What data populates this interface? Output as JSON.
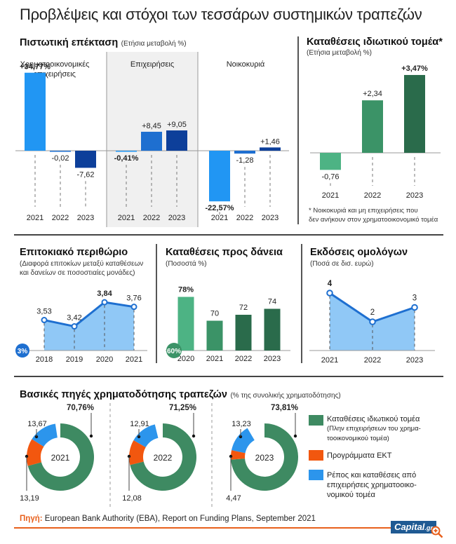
{
  "title": "Προβλέψεις και στόχοι των τεσσάρων συστημικών τραπεζών",
  "credit_expansion": {
    "title": "Πιστωτική επέκταση",
    "subtitle": "(Ετήσια μεταβολή %)",
    "groups": [
      {
        "name": "Χρηματοοικονομικές επιχειρήσεις",
        "name_line1": "Χρηματοοικονομικές",
        "name_line2": "επιχειρήσεις"
      },
      {
        "name": "Επιχειρήσεις"
      },
      {
        "name": "Νοικοκυριά"
      }
    ]
  },
  "private_deposits": {
    "title": "Καταθέσεις ιδιωτικού τομέα*",
    "subtitle": "(Ετήσια μεταβολή %)",
    "footnote_line1": "* Νοικοκυριά και μη επιχειρήσεις που",
    "footnote_line2": "δεν ανήκουν στον χρηματοοικονομικό τομέα"
  },
  "interest_margin": {
    "title": "Επιτοκιακό περιθώριο",
    "subtitle_line1": "(Διαφορά επιτοκίων μεταξύ καταθέσεων",
    "subtitle_line2": "και δανείων σε ποσοστιαίες μονάδες)",
    "base_badge": "3%"
  },
  "deposits_to_loans": {
    "title": "Καταθέσεις προς δάνεια",
    "subtitle": "(Ποσοστά %)",
    "base_badge": "60%"
  },
  "bond_issues": {
    "title": "Εκδόσεις ομολόγων",
    "subtitle": "(Ποσά σε δισ. ευρώ)"
  },
  "funding_sources": {
    "title": "Βασικές πηγές χρηματοδότησης τραπεζών",
    "subtitle": "(% της συνολικής χρηματοδότησης)",
    "legend": [
      {
        "line1": "Καταθέσεις ιδιωτικού τομέα",
        "line2": "(Πλην επιχειρήσεων του χρημα-",
        "line3": "τοοικονομικού τομέα)",
        "color": "#3e8a62"
      },
      {
        "line1": "Προγράμματα ΕΚΤ",
        "color": "#f2570f"
      },
      {
        "line1": "Ρέπος και καταθέσεις από",
        "line2": "επιχειρήσεις χρηματοοικο-",
        "line3": "νομικού τομέα",
        "color": "#2c95ec"
      }
    ]
  },
  "source": {
    "label": "Πηγή:",
    "text": "European Bank Authority (EBA), Report on Funding Plans, September 2021"
  },
  "logo": {
    "main": "Capital",
    "suffix": ".gr"
  },
  "chart_data": [
    {
      "type": "bar",
      "title": "Πιστωτική επέκταση (Ετήσια μεταβολή %)",
      "categories": [
        "2021",
        "2022",
        "2023"
      ],
      "series": [
        {
          "name": "Χρηματοοικονομικές επιχειρήσεις",
          "values": [
            34.77,
            -0.02,
            -7.62
          ],
          "labels": [
            "+34,77%",
            "-0,02",
            "-7,62"
          ]
        },
        {
          "name": "Επιχειρήσεις",
          "values": [
            -0.41,
            8.45,
            9.05
          ],
          "labels": [
            "-0,41%",
            "+8,45",
            "+9,05"
          ]
        },
        {
          "name": "Νοικοκυριά",
          "values": [
            -22.57,
            -1.28,
            1.46
          ],
          "labels": [
            "-22,57%",
            "-1,28",
            "+1,46"
          ]
        }
      ],
      "colors": [
        "#2196f3",
        "#1e6fd0",
        "#0d3f9a"
      ]
    },
    {
      "type": "bar",
      "title": "Καταθέσεις ιδιωτικού τομέα* (Ετήσια μεταβολή %)",
      "categories": [
        "2021",
        "2022",
        "2023"
      ],
      "values": [
        -0.76,
        2.34,
        3.47
      ],
      "labels": [
        "-0,76",
        "+2,34",
        "+3,47%"
      ],
      "colors": [
        "#4db384",
        "#3b9367",
        "#2a6b4b"
      ]
    },
    {
      "type": "area",
      "title": "Επιτοκιακό περιθώριο",
      "categories": [
        "2018",
        "2019",
        "2020",
        "2021"
      ],
      "values": [
        3.53,
        3.42,
        3.84,
        3.76
      ],
      "labels": [
        "3,53",
        "3,42",
        "3,84",
        "3,76"
      ],
      "ylim": [
        3,
        4
      ],
      "baseline_label": "3%"
    },
    {
      "type": "bar",
      "title": "Καταθέσεις προς δάνεια (Ποσοστά %)",
      "categories": [
        "2020",
        "2021",
        "2022",
        "2023"
      ],
      "values": [
        78,
        70,
        72,
        74
      ],
      "labels": [
        "78%",
        "70",
        "72",
        "74"
      ],
      "ylim": [
        60,
        80
      ],
      "baseline_label": "60%",
      "colors": [
        "#4db384",
        "#3b9367",
        "#2a6b4b",
        "#2a6b4b"
      ]
    },
    {
      "type": "area",
      "title": "Εκδόσεις ομολόγων (Ποσά σε δισ. ευρώ)",
      "categories": [
        "2021",
        "2022",
        "2023"
      ],
      "values": [
        4,
        2,
        3
      ],
      "labels": [
        "4",
        "2",
        "3"
      ],
      "ylim": [
        0,
        5
      ]
    },
    {
      "type": "pie",
      "title": "Βασικές πηγές χρηματοδότησης τραπεζών (% της συνολικής χρηματοδότησης)",
      "donuts": [
        {
          "year": "2021",
          "values": {
            "deposits": 70.76,
            "ecb": 13.19,
            "repos": 13.67
          },
          "labels": {
            "deposits": "70,76%",
            "ecb": "13,19",
            "repos": "13,67"
          }
        },
        {
          "year": "2022",
          "values": {
            "deposits": 71.25,
            "ecb": 12.08,
            "repos": 12.91
          },
          "labels": {
            "deposits": "71,25%",
            "ecb": "12,08",
            "repos": "12,91"
          }
        },
        {
          "year": "2023",
          "values": {
            "deposits": 73.81,
            "ecb": 4.47,
            "repos": 13.23
          },
          "labels": {
            "deposits": "73,81%",
            "ecb": "4,47",
            "repos": "13,23"
          }
        }
      ],
      "colors": {
        "deposits": "#3e8a62",
        "ecb": "#f2570f",
        "repos": "#2c95ec"
      }
    }
  ]
}
